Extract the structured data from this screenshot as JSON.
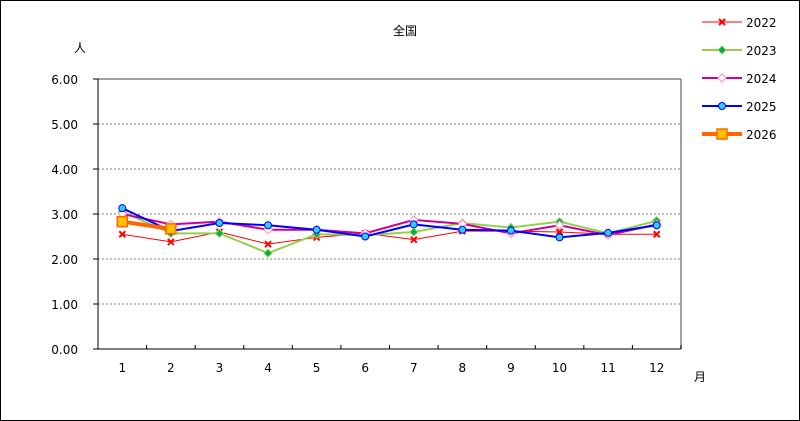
{
  "chart_data": {
    "type": "line",
    "title": "全国",
    "xlabel": "月",
    "ylabel": "人",
    "ylim": [
      0,
      6
    ],
    "yticks": [
      "0.00",
      "1.00",
      "2.00",
      "3.00",
      "4.00",
      "5.00",
      "6.00"
    ],
    "categories": [
      "1",
      "2",
      "3",
      "4",
      "5",
      "6",
      "7",
      "8",
      "9",
      "10",
      "11",
      "12"
    ],
    "grid": true,
    "legend_position": "right",
    "series": [
      {
        "name": "2022",
        "color": "#ff0000",
        "marker": "x",
        "marker_color": "#ff0000",
        "line_width": 1,
        "values": [
          2.55,
          2.38,
          2.6,
          2.33,
          2.48,
          2.57,
          2.43,
          2.62,
          2.62,
          2.6,
          2.55,
          2.55
        ]
      },
      {
        "name": "2023",
        "color": "#92d050",
        "marker": "diamond",
        "marker_color": "#00b050",
        "line_width": 2,
        "values": [
          3.05,
          2.57,
          2.57,
          2.13,
          2.55,
          2.53,
          2.6,
          2.8,
          2.7,
          2.83,
          2.57,
          2.85
        ]
      },
      {
        "name": "2024",
        "color": "#cc0099",
        "marker": "diamond-open",
        "marker_color": "#ff99cc",
        "line_width": 2,
        "values": [
          3.0,
          2.77,
          2.83,
          2.65,
          2.65,
          2.57,
          2.87,
          2.78,
          2.57,
          2.75,
          2.53,
          2.77
        ]
      },
      {
        "name": "2025",
        "color": "#0000ff",
        "marker": "circle",
        "marker_color": "#33ccff",
        "line_width": 2,
        "values": [
          3.13,
          2.62,
          2.8,
          2.75,
          2.65,
          2.5,
          2.77,
          2.65,
          2.63,
          2.48,
          2.58,
          2.75
        ]
      },
      {
        "name": "2026",
        "color": "#ff6600",
        "marker": "square",
        "marker_color": "#ffc000",
        "line_width": 4,
        "values": [
          2.83,
          2.67
        ]
      }
    ]
  }
}
